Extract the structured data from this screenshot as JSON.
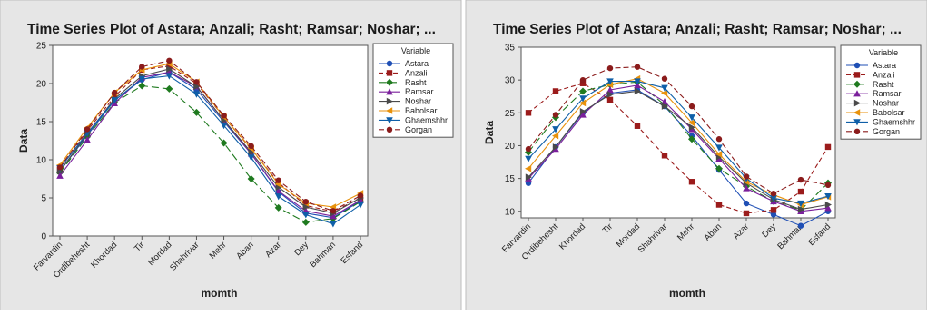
{
  "chart_data": [
    {
      "type": "line",
      "title": "Time Series Plot of Astara; Anzali; Rasht; Ramsar; Noshar; ...",
      "xlabel": "momth",
      "ylabel": "Data",
      "ylim": [
        0,
        25
      ],
      "yticks": [
        0,
        5,
        10,
        15,
        20,
        25
      ],
      "grid": false,
      "legend_title": "Variable",
      "legend_position": "right",
      "categories": [
        "Farvardin",
        "Ordibehesht",
        "Khordad",
        "Tir",
        "Mordad",
        "Shahrivar",
        "Mehr",
        "Aban",
        "Azar",
        "Dey",
        "Bahman",
        "Esfand"
      ],
      "series": [
        {
          "name": "Astara",
          "color": "#1f4fb5",
          "dash": "",
          "marker": "circle",
          "values": [
            8.5,
            13.2,
            17.8,
            20.5,
            21.5,
            19.2,
            15.0,
            10.8,
            5.8,
            3.0,
            2.4,
            4.6
          ]
        },
        {
          "name": "Anzali",
          "color": "#9b1b1b",
          "dash": "5,3",
          "marker": "square",
          "values": [
            8.8,
            13.8,
            18.3,
            21.8,
            22.3,
            20.0,
            15.6,
            11.4,
            7.0,
            4.0,
            3.2,
            5.0
          ]
        },
        {
          "name": "Rasht",
          "color": "#1f7a1f",
          "dash": "8,4",
          "marker": "diamond",
          "values": [
            8.3,
            13.0,
            17.5,
            19.7,
            19.3,
            16.2,
            12.2,
            7.5,
            3.7,
            1.8,
            2.3,
            4.5
          ]
        },
        {
          "name": "Ramsar",
          "color": "#7a1f9b",
          "dash": "",
          "marker": "triangle-up",
          "values": [
            7.9,
            12.6,
            17.4,
            20.8,
            21.5,
            19.6,
            15.2,
            10.8,
            5.9,
            3.3,
            2.6,
            4.7
          ]
        },
        {
          "name": "Noshar",
          "color": "#4a4a4a",
          "dash": "",
          "marker": "triangle-right",
          "values": [
            8.5,
            13.4,
            18.0,
            21.0,
            21.9,
            19.6,
            15.2,
            11.0,
            6.4,
            3.8,
            3.0,
            5.0
          ]
        },
        {
          "name": "Babolsar",
          "color": "#e8920c",
          "dash": "",
          "marker": "triangle-left",
          "values": [
            9.3,
            14.2,
            18.8,
            21.8,
            22.6,
            20.2,
            15.6,
            11.5,
            6.8,
            4.3,
            3.8,
            5.6
          ]
        },
        {
          "name": "Ghaemshhr",
          "color": "#0f5fa8",
          "dash": "",
          "marker": "triangle-down",
          "values": [
            8.9,
            13.5,
            17.8,
            20.6,
            21.0,
            18.6,
            14.5,
            10.3,
            5.2,
            2.8,
            1.6,
            4.1
          ]
        },
        {
          "name": "Gorgan",
          "color": "#8b1c1c",
          "dash": "6,3",
          "marker": "circle",
          "values": [
            9.0,
            14.0,
            18.8,
            22.2,
            23.0,
            20.2,
            15.8,
            11.8,
            7.3,
            4.5,
            3.3,
            5.3
          ]
        }
      ]
    },
    {
      "type": "line",
      "title": "Time Series Plot of Astara; Anzali; Rasht; Ramsar; Noshar; ...",
      "xlabel": "momth",
      "ylabel": "Data",
      "ylim": [
        9,
        35
      ],
      "yticks": [
        10,
        15,
        20,
        25,
        30,
        35
      ],
      "grid": false,
      "legend_title": "Variable",
      "legend_position": "right",
      "categories": [
        "Farvardin",
        "Ordibehesht",
        "Khordad",
        "Tir",
        "Mordad",
        "Shahrivar",
        "Mehr",
        "Aban",
        "Azar",
        "Dey",
        "Bahman",
        "Esfand"
      ],
      "series": [
        {
          "name": "Astara",
          "color": "#1f4fb5",
          "dash": "",
          "marker": "circle",
          "values": [
            14.3,
            19.8,
            25.0,
            28.0,
            28.5,
            26.0,
            21.5,
            16.3,
            11.2,
            9.5,
            7.8,
            10.0
          ]
        },
        {
          "name": "Anzali",
          "color": "#9b1b1b",
          "dash": "5,3",
          "marker": "square",
          "values": [
            25.0,
            28.3,
            29.5,
            27.0,
            23.0,
            18.5,
            14.5,
            11.0,
            9.7,
            10.2,
            13.0,
            19.8
          ]
        },
        {
          "name": "Rasht",
          "color": "#1f7a1f",
          "dash": "8,4",
          "marker": "diamond",
          "values": [
            19.0,
            24.3,
            28.3,
            29.3,
            29.7,
            26.2,
            21.0,
            16.5,
            13.8,
            11.5,
            10.2,
            14.3
          ]
        },
        {
          "name": "Ramsar",
          "color": "#7a1f9b",
          "dash": "",
          "marker": "triangle-up",
          "values": [
            15.0,
            19.5,
            24.7,
            28.5,
            29.2,
            26.7,
            22.5,
            18.0,
            13.5,
            11.5,
            10.0,
            10.5
          ]
        },
        {
          "name": "Noshar",
          "color": "#4a4a4a",
          "dash": "",
          "marker": "triangle-right",
          "values": [
            15.2,
            19.8,
            25.2,
            27.8,
            28.3,
            26.0,
            22.8,
            18.3,
            14.3,
            11.8,
            10.3,
            11.0
          ]
        },
        {
          "name": "Babolsar",
          "color": "#e8920c",
          "dash": "",
          "marker": "triangle-left",
          "values": [
            16.5,
            21.5,
            26.5,
            29.3,
            30.2,
            28.0,
            23.5,
            18.7,
            14.5,
            12.5,
            11.0,
            12.2
          ]
        },
        {
          "name": "Ghaemshhr",
          "color": "#0f5fa8",
          "dash": "",
          "marker": "triangle-down",
          "values": [
            18.0,
            22.5,
            27.2,
            29.8,
            29.8,
            28.8,
            24.3,
            19.7,
            15.0,
            12.0,
            11.2,
            12.3
          ]
        },
        {
          "name": "Gorgan",
          "color": "#8b1c1c",
          "dash": "6,3",
          "marker": "circle",
          "values": [
            19.5,
            24.7,
            30.0,
            31.8,
            32.0,
            30.2,
            26.0,
            21.0,
            15.3,
            12.7,
            14.8,
            14.0
          ]
        }
      ]
    }
  ]
}
